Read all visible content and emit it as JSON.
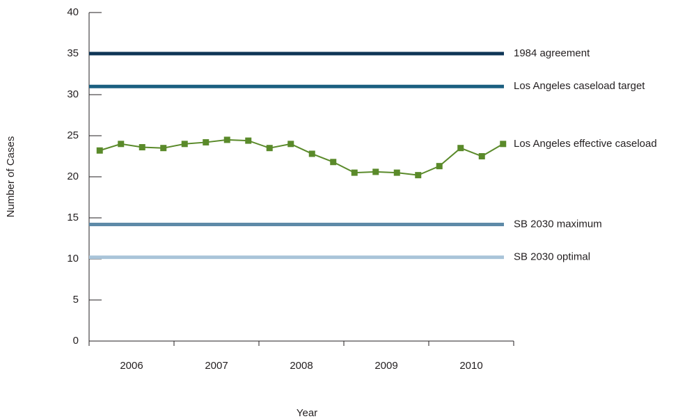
{
  "chart_data": {
    "type": "line",
    "y_label": "Number of Cases",
    "x_label": "Year",
    "year_groups": [
      "2006",
      "2007",
      "2008",
      "2009",
      "2010"
    ],
    "categories": [
      null,
      null,
      null,
      null,
      null,
      null,
      null,
      null,
      null,
      null,
      null,
      null,
      null,
      null,
      null,
      null,
      null,
      null,
      null,
      null
    ],
    "series": [
      {
        "name": "Los Angeles effective caseload",
        "color": "#5a8a2a",
        "values": [
          23.2,
          24.0,
          23.6,
          23.5,
          24.0,
          24.2,
          24.5,
          24.4,
          23.5,
          24.0,
          22.8,
          21.8,
          20.5,
          20.6,
          20.5,
          20.2,
          21.3,
          23.5,
          22.5,
          24.0
        ]
      }
    ],
    "reference_lines": [
      {
        "name": "1984 agreement",
        "value": 35,
        "color": "#0e3556"
      },
      {
        "name": "Los Angeles caseload target",
        "value": 31,
        "color": "#1b5f80"
      },
      {
        "name": "SB 2030 maximum",
        "value": 14.2,
        "color": "#5e8aa8"
      },
      {
        "name": "SB 2030 optimal",
        "value": 10.2,
        "color": "#a9c4d9"
      }
    ],
    "ylim": [
      0,
      40
    ],
    "yticks": [
      0,
      5,
      10,
      15,
      20,
      25,
      30,
      35,
      40
    ]
  }
}
